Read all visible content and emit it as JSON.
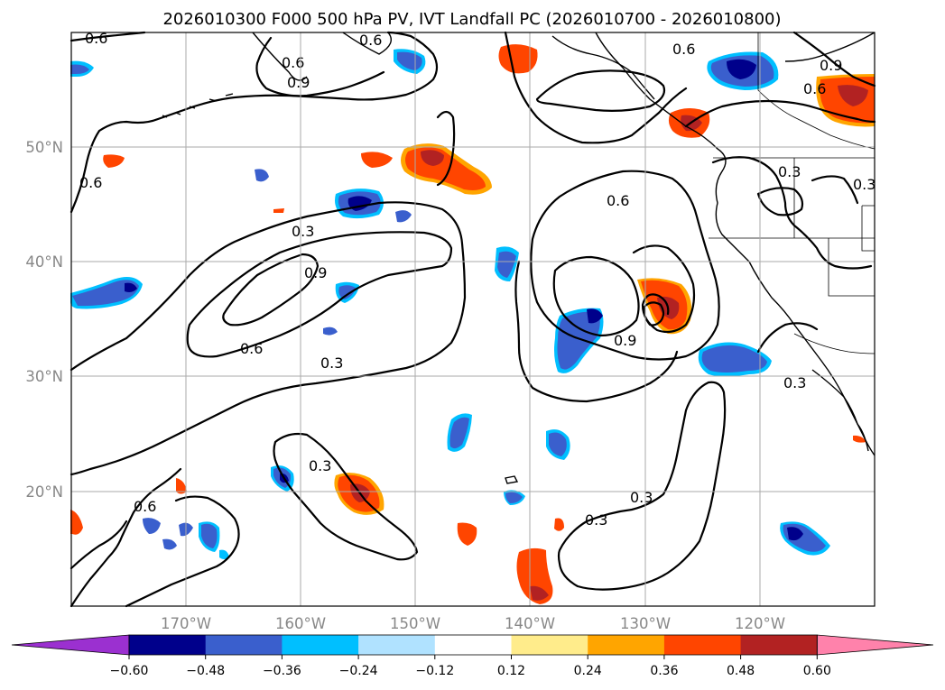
{
  "title": "2026010300 F000 500 hPa PV, IVT Landfall PC (2026010700 - 2026010800)",
  "longitude_labels": [
    "170°W",
    "160°W",
    "150°W",
    "140°W",
    "130°W",
    "120°W"
  ],
  "latitude_labels": [
    "50°N",
    "40°N",
    "30°N",
    "20°N"
  ],
  "colorbar": {
    "tick_labels": [
      "−0.60",
      "−0.48",
      "−0.36",
      "−0.24",
      "−0.12",
      "0.12",
      "0.24",
      "0.36",
      "0.48",
      "0.60"
    ],
    "colors": [
      "#9b30d0",
      "#00008b",
      "#3a5fcd",
      "#00bfff",
      "#b0e2ff",
      "#ffffff",
      "#ffec8b",
      "#ffa500",
      "#ff4500",
      "#b22222",
      "#ff82ab"
    ]
  },
  "contour_labels": [
    "0.6",
    "0.6",
    "0.6",
    "0.9",
    "0.6",
    "0.6",
    "0.6",
    "0.3",
    "0.9",
    "0.6",
    "0.3",
    "0.6",
    "0.9",
    "0.3",
    "0.3",
    "0.3",
    "0.6",
    "0.3",
    "0.3",
    "0.9",
    "0.3"
  ],
  "colors": {
    "pos_low": "#ffec8b",
    "pos_mid": "#ffa500",
    "pos_high": "#ff4500",
    "pos_max": "#b22222",
    "neg_low": "#b0e2ff",
    "neg_mid": "#00bfff",
    "neg_high": "#3a5fcd",
    "neg_max": "#00008b"
  }
}
